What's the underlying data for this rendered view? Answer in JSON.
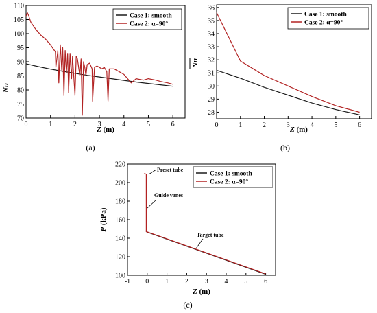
{
  "colors": {
    "smooth": "#1a1a1a",
    "alpha90": "#b22222"
  },
  "chart_data": [
    {
      "type": "line",
      "panel_label": "(a)",
      "xlabel": "Z (m)",
      "ylabel": "Nu",
      "xlim": [
        0,
        6.5
      ],
      "ylim": [
        70,
        110
      ],
      "xticks": [
        "0",
        "1",
        "2",
        "3",
        "4",
        "5",
        "6"
      ],
      "yticks": [
        "70",
        "75",
        "80",
        "85",
        "90",
        "95",
        "100",
        "105",
        "110"
      ],
      "legend": "top-right",
      "series": [
        {
          "name": "Case 1: smooth",
          "color": "smooth",
          "x": [
            0,
            0.5,
            1,
            1.5,
            2,
            2.5,
            3,
            3.5,
            4,
            4.5,
            5,
            5.5,
            6
          ],
          "y": [
            89.3,
            88.3,
            87.4,
            86.6,
            85.9,
            85.2,
            84.6,
            84.0,
            83.4,
            82.8,
            82.3,
            81.8,
            81.3
          ]
        },
        {
          "name": "Case 2: α=90°",
          "color": "alpha90",
          "x": [
            0,
            0.05,
            0.1,
            0.2,
            0.4,
            0.6,
            0.8,
            1.0,
            1.2,
            1.22,
            1.3,
            1.34,
            1.4,
            1.46,
            1.5,
            1.55,
            1.6,
            1.65,
            1.7,
            1.74,
            1.8,
            1.86,
            1.9,
            2.0,
            2.05,
            2.1,
            2.2,
            2.25,
            2.3,
            2.35,
            2.4,
            2.45,
            2.5,
            2.6,
            2.7,
            2.72,
            2.8,
            2.9,
            3.0,
            3.1,
            3.2,
            3.3,
            3.35,
            3.4,
            3.6,
            4.0,
            4.3,
            4.5,
            4.8,
            5.0,
            5.3,
            5.5,
            5.8,
            6.0
          ],
          "y": [
            106,
            107.5,
            106.5,
            104,
            101.5,
            99.5,
            98,
            96,
            93.5,
            88,
            94,
            82.5,
            96,
            87,
            95,
            78,
            94,
            86,
            93,
            79,
            93,
            84,
            92,
            78,
            92,
            91,
            85,
            91,
            71,
            90,
            88,
            85,
            89,
            89.5,
            87.5,
            76,
            88,
            88.5,
            88,
            87.5,
            88,
            86.5,
            76,
            87.5,
            87.5,
            85.5,
            82.5,
            84,
            83.5,
            84,
            83.5,
            83,
            82.5,
            82
          ]
        }
      ]
    },
    {
      "type": "line",
      "panel_label": "(b)",
      "xlabel": "Z (m)",
      "ylabel": "Nu (mean)",
      "xlim": [
        0,
        6.5
      ],
      "ylim": [
        27.5,
        36.2
      ],
      "xticks": [
        "0",
        "1",
        "2",
        "3",
        "4",
        "5",
        "6"
      ],
      "yticks": [
        "28",
        "29",
        "30",
        "31",
        "32",
        "33",
        "34",
        "35",
        "36"
      ],
      "legend": "top-right",
      "series": [
        {
          "name": "Case 1: smooth",
          "color": "smooth",
          "x": [
            0,
            1,
            2,
            3,
            4,
            5,
            6
          ],
          "y": [
            31.2,
            30.6,
            29.9,
            29.3,
            28.7,
            28.2,
            27.8
          ]
        },
        {
          "name": "Case 2: α=90°",
          "color": "alpha90",
          "x": [
            0,
            1,
            2,
            3,
            4,
            5,
            6
          ],
          "y": [
            35.6,
            31.9,
            30.8,
            30.0,
            29.2,
            28.5,
            28.0
          ]
        }
      ]
    },
    {
      "type": "line",
      "panel_label": "(c)",
      "xlabel": "Z (m)",
      "ylabel": "P (kPa)",
      "xlim": [
        -1,
        6.5
      ],
      "ylim": [
        100,
        220
      ],
      "xticks": [
        "-1",
        "0",
        "1",
        "2",
        "3",
        "4",
        "5",
        "6"
      ],
      "yticks": [
        "100",
        "120",
        "140",
        "160",
        "180",
        "200",
        "220"
      ],
      "legend": "top-right",
      "annotations": [
        "Preset tube",
        "Guide vanes",
        "Target tube"
      ],
      "series": [
        {
          "name": "Case 1: smooth",
          "color": "smooth",
          "x": [
            -0.08,
            0,
            6
          ],
          "y": [
            148,
            146.5,
            101
          ]
        },
        {
          "name": "Case 2: α=90°",
          "color": "alpha90",
          "x": [
            -0.15,
            -0.05,
            -0.05,
            -0.05,
            0,
            6
          ],
          "y": [
            210,
            209,
            165,
            147,
            146.8,
            101.5
          ]
        }
      ]
    }
  ]
}
